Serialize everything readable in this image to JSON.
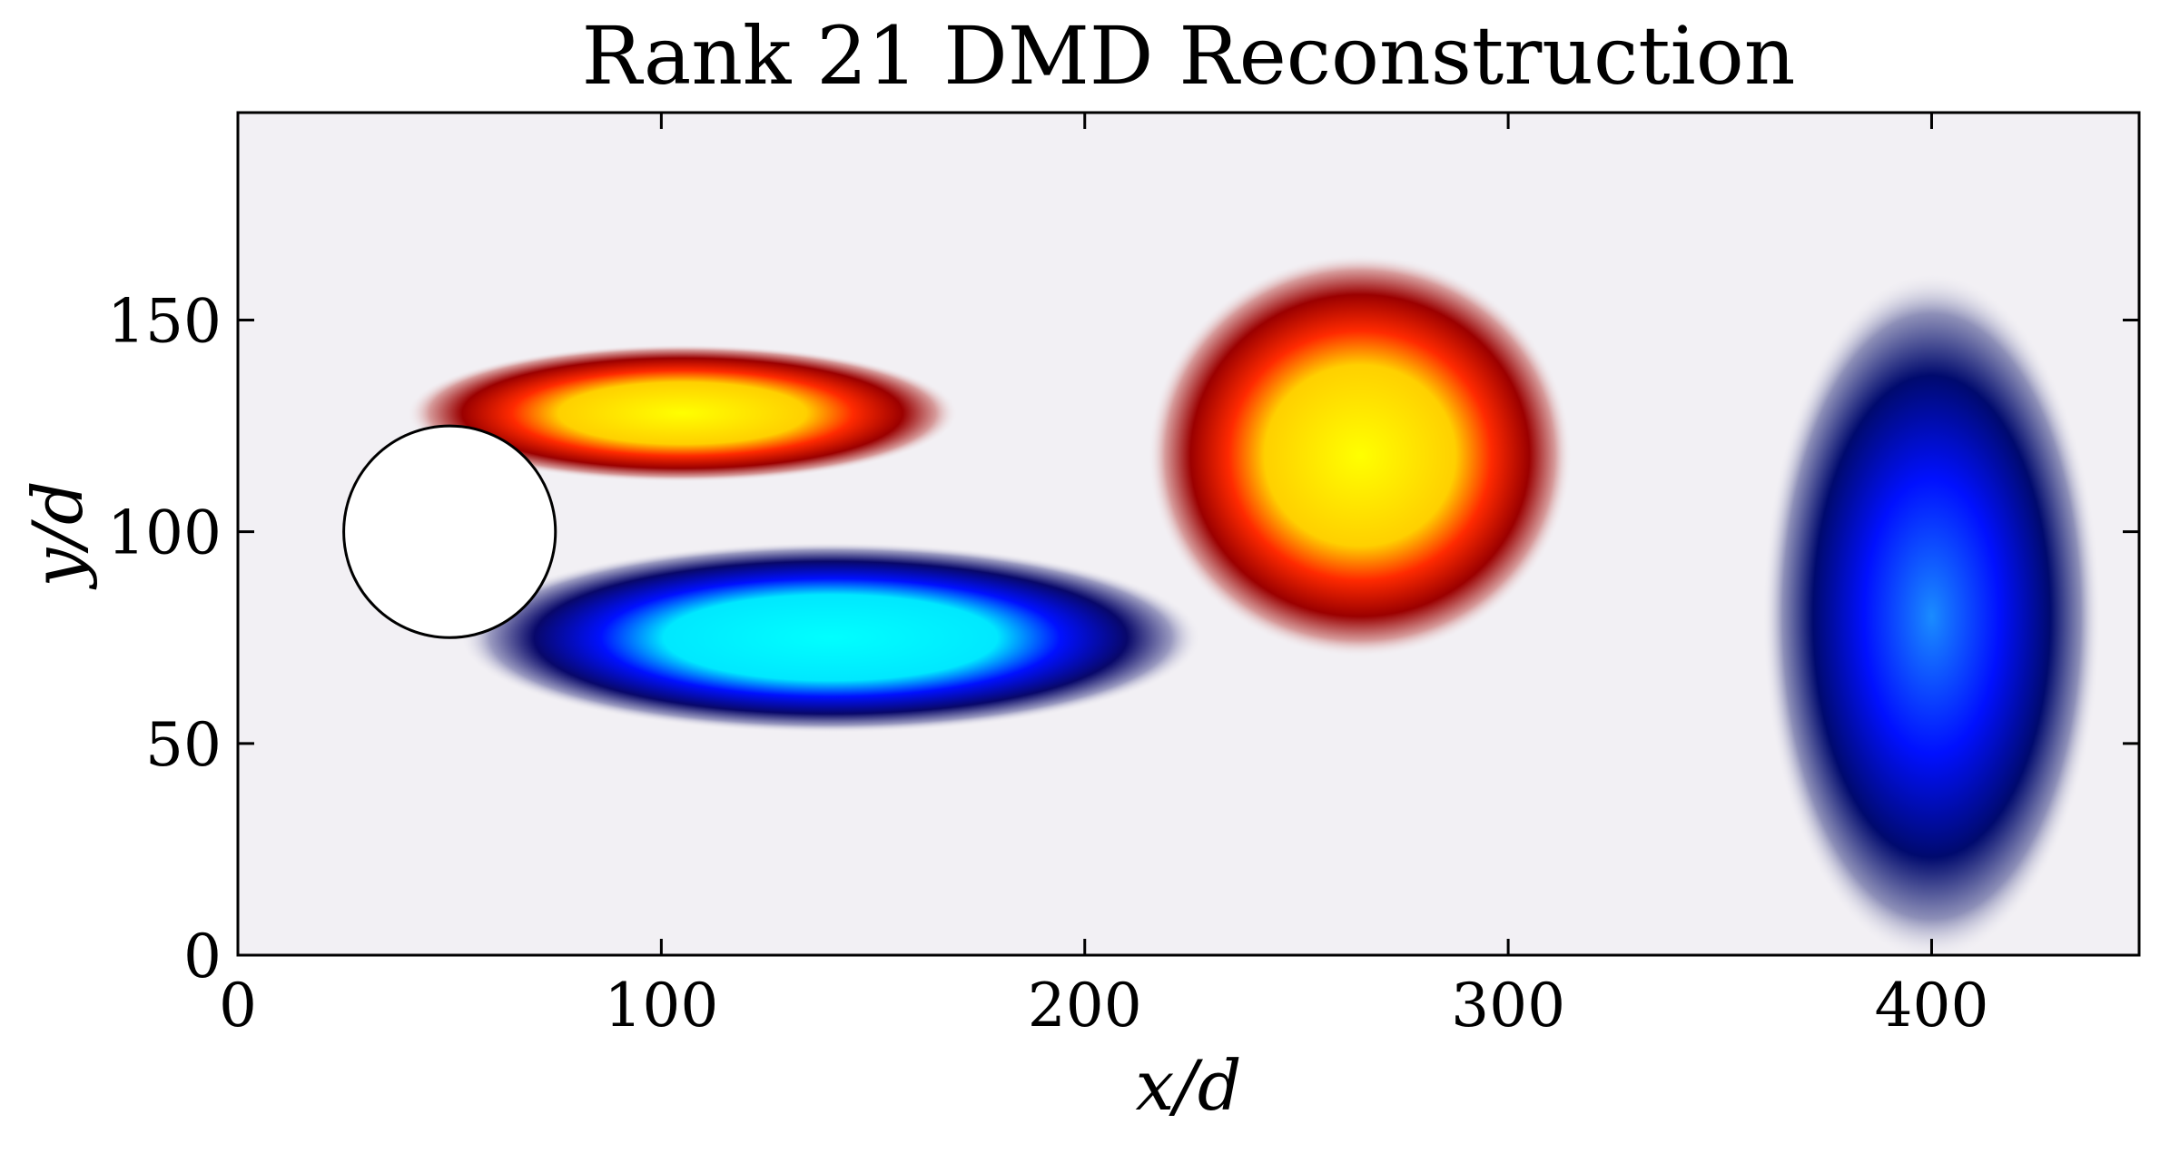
{
  "chart_data": {
    "type": "heatmap",
    "title": "Rank 21 DMD Reconstruction",
    "xlabel": "x/d",
    "ylabel": "y/d",
    "xlim": [
      0,
      449
    ],
    "ylim": [
      0,
      199
    ],
    "xticks": [
      0,
      100,
      200,
      300,
      400
    ],
    "yticks": [
      0,
      50,
      100,
      150
    ],
    "grid": false,
    "colormap": "diverging blue-white-red with cyan and yellow saturation",
    "colors": {
      "positive_max": "#ffff00",
      "positive_mid": "#ff2a00",
      "positive_low": "#8b0000",
      "zero": "#f2f0f4",
      "negative_low": "#1a1a6e",
      "negative_mid": "#0010ff",
      "negative_max": "#00ffff"
    },
    "obstacle": {
      "shape": "circle",
      "center": [
        50,
        100
      ],
      "radius": 25
    },
    "features": [
      {
        "sign": "positive",
        "cx": 105,
        "cy": 128,
        "rx": 52,
        "ry": 13,
        "peak": 1.0
      },
      {
        "sign": "positive",
        "cx": 265,
        "cy": 118,
        "rx": 40,
        "ry": 38,
        "peak": 0.95
      },
      {
        "sign": "negative",
        "cx": 140,
        "cy": 75,
        "rx": 70,
        "ry": 18,
        "peak": 1.0
      },
      {
        "sign": "negative",
        "cx": 400,
        "cy": 80,
        "rx": 32,
        "ry": 65,
        "peak": 0.65
      }
    ]
  }
}
